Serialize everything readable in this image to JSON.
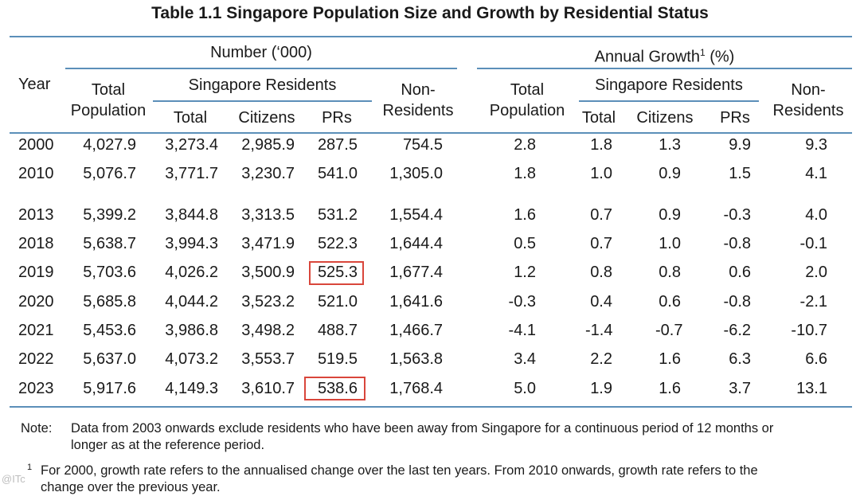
{
  "title": "Table 1.1  Singapore Population Size and Growth by Residential Status",
  "headers": {
    "year": "Year",
    "number_group": "Number (‘000)",
    "growth_group": "Annual Growth",
    "growth_sup": "1",
    "growth_unit": " (%)",
    "total_population": [
      "Total",
      "Population"
    ],
    "singapore_residents": "Singapore Residents",
    "sub_total": "Total",
    "citizens": "Citizens",
    "prs": "PRs",
    "non_residents": [
      "Non-",
      "Residents"
    ]
  },
  "rows": [
    [
      "2000",
      "4,027.9",
      "3,273.4",
      "2,985.9",
      "287.5",
      "754.5",
      "2.8",
      "1.8",
      "1.3",
      "9.9",
      "9.3"
    ],
    [
      "2010",
      "5,076.7",
      "3,771.7",
      "3,230.7",
      "541.0",
      "1,305.0",
      "1.8",
      "1.0",
      "0.9",
      "1.5",
      "4.1"
    ],
    [
      "2013",
      "5,399.2",
      "3,844.8",
      "3,313.5",
      "531.2",
      "1,554.4",
      "1.6",
      "0.7",
      "0.9",
      "-0.3",
      "4.0"
    ],
    [
      "2018",
      "5,638.7",
      "3,994.3",
      "3,471.9",
      "522.3",
      "1,644.4",
      "0.5",
      "0.7",
      "1.0",
      "-0.8",
      "-0.1"
    ],
    [
      "2019",
      "5,703.6",
      "4,026.2",
      "3,500.9",
      "525.3",
      "1,677.4",
      "1.2",
      "0.8",
      "0.8",
      "0.6",
      "2.0"
    ],
    [
      "2020",
      "5,685.8",
      "4,044.2",
      "3,523.2",
      "521.0",
      "1,641.6",
      "-0.3",
      "0.4",
      "0.6",
      "-0.8",
      "-2.1"
    ],
    [
      "2021",
      "5,453.6",
      "3,986.8",
      "3,498.2",
      "488.7",
      "1,466.7",
      "-4.1",
      "-1.4",
      "-0.7",
      "-6.2",
      "-10.7"
    ],
    [
      "2022",
      "5,637.0",
      "4,073.2",
      "3,553.7",
      "519.5",
      "1,563.8",
      "3.4",
      "2.2",
      "1.6",
      "6.3",
      "6.6"
    ],
    [
      "2023",
      "5,917.6",
      "4,149.3",
      "3,610.7",
      "538.6",
      "1,768.4",
      "5.0",
      "1.9",
      "1.6",
      "3.7",
      "13.1"
    ]
  ],
  "highlight_color": "#d9463b",
  "rule_color": "#5b8fb9",
  "notes": {
    "note_label": "Note:",
    "note_text_1": "Data from 2003 onwards exclude residents who have been away from Singapore for a continuous period of 12 months or",
    "note_text_2": "longer as at the reference period.",
    "footnote_mark": "1",
    "footnote_text_1": "For 2000, growth rate refers to the annualised change over the last ten years. From 2010 onwards, growth rate refers to the",
    "footnote_text_2": "change over the previous year."
  },
  "watermark": "@ITc"
}
